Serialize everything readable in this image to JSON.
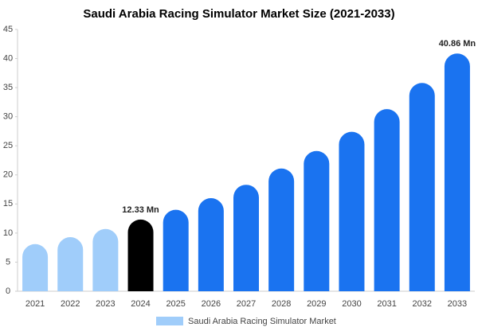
{
  "chart_data": {
    "type": "bar",
    "title": "Saudi Arabia Racing Simulator Market Size (2021-2033)",
    "categories": [
      "2021",
      "2022",
      "2023",
      "2024",
      "2025",
      "2026",
      "2027",
      "2028",
      "2029",
      "2030",
      "2031",
      "2032",
      "2033"
    ],
    "series": [
      {
        "name": "Saudi Arabia Racing Simulator Market",
        "color": "#a0cdfa",
        "values": [
          8.1,
          9.3,
          10.7,
          12.33,
          14.0,
          16.0,
          18.3,
          21.1,
          24.1,
          27.4,
          31.3,
          35.8,
          40.86
        ],
        "colors": [
          "#a0cdfa",
          "#a0cdfa",
          "#a0cdfa",
          "#000000",
          "#1a73f0",
          "#1a73f0",
          "#1a73f0",
          "#1a73f0",
          "#1a73f0",
          "#1a73f0",
          "#1a73f0",
          "#1a73f0",
          "#1a73f0"
        ],
        "value_labels": [
          null,
          null,
          null,
          "12.33 Mn",
          null,
          null,
          null,
          null,
          null,
          null,
          null,
          null,
          "40.86 Mn"
        ]
      }
    ],
    "ylim": [
      0,
      45
    ],
    "yticks": [
      0,
      5,
      10,
      15,
      20,
      25,
      30,
      35,
      40,
      45
    ]
  }
}
